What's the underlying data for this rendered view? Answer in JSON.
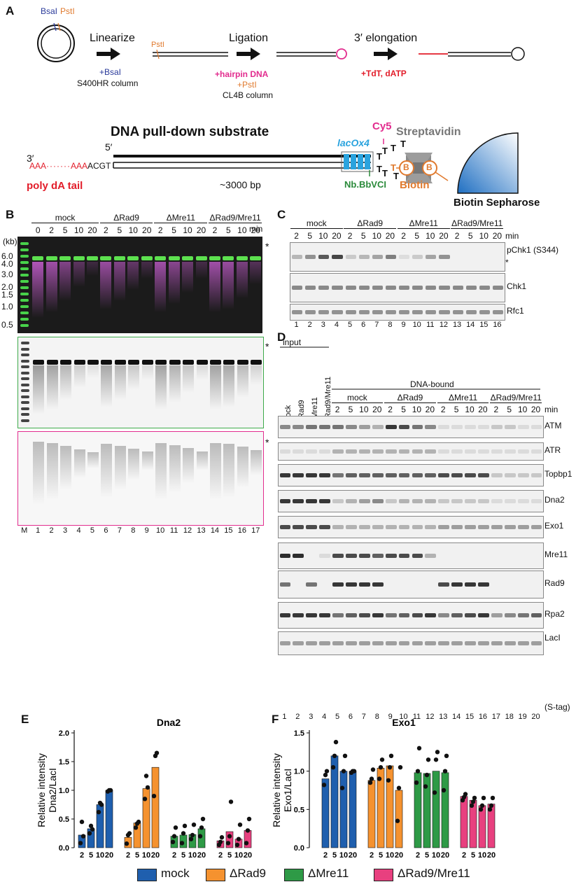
{
  "panelA": {
    "label": "A",
    "plasmid_site1": "BsaI",
    "plasmid_site2": "PstI",
    "step1": "Linearize",
    "step1_reagent": "+BsaI",
    "step1_column": "S400HR column",
    "pstI_label": "PstI",
    "step2": "Ligation",
    "step2_reagent1": "+hairpin DNA",
    "step2_reagent2": "+PstI",
    "step2_column": "CL4B column",
    "step3": "3′ elongation",
    "step3_reagent": "+TdT, dATP",
    "substrate_title": "DNA pull-down substrate",
    "three_prime": "3′",
    "five_prime": "5′",
    "tail_seq_a": "AAA",
    "tail_seq_b": "AAA",
    "tail_seq_c": "ACGT",
    "poly_da": "poly dA tail",
    "length": "~3000 bp",
    "laco": "lacOx4",
    "nb": "Nb.BbVCI",
    "cy5": "Cy5",
    "streptavidin": "Streptavidin",
    "biotin": "Biotin",
    "biotin_b": "B",
    "sepharose": "Biotin Sepharose",
    "t": "T"
  },
  "panelB": {
    "label": "B",
    "kb": "(kb)",
    "groups": [
      "mock",
      "ΔRad9",
      "ΔMre11",
      "ΔRad9/Mre11"
    ],
    "times": [
      "0",
      "2",
      "5",
      "10",
      "20",
      "2",
      "5",
      "10",
      "20",
      "2",
      "5",
      "10",
      "20",
      "2",
      "5",
      "10",
      "20"
    ],
    "min": "min",
    "ladder": [
      "6.0",
      "4.0",
      "3.0",
      "2.0",
      "1.5",
      "1.0",
      "0.5"
    ],
    "star": "*",
    "lanes": [
      "M",
      "1",
      "2",
      "3",
      "4",
      "5",
      "6",
      "7",
      "8",
      "9",
      "10",
      "11",
      "12",
      "13",
      "14",
      "15",
      "16",
      "17"
    ]
  },
  "panelC": {
    "label": "C",
    "groups": [
      "mock",
      "ΔRad9",
      "ΔMre11",
      "ΔRad9/Mre11"
    ],
    "times": [
      "2",
      "5",
      "10",
      "20",
      "2",
      "5",
      "10",
      "20",
      "2",
      "5",
      "10",
      "20",
      "2",
      "5",
      "10",
      "20"
    ],
    "min": "min",
    "blots": [
      "pChk1 (S344)",
      "Chk1",
      "Rfc1"
    ],
    "star": "*",
    "lanes": [
      "1",
      "2",
      "3",
      "4",
      "5",
      "6",
      "7",
      "8",
      "9",
      "10",
      "11",
      "12",
      "13",
      "14",
      "15",
      "16"
    ]
  },
  "panelD": {
    "label": "D",
    "input": "input",
    "input_lanes": [
      "mock",
      "ΔRad9",
      "ΔMre11",
      "ΔRad9/Mre11"
    ],
    "dna_bound": "DNA-bound",
    "groups": [
      "mock",
      "ΔRad9",
      "ΔMre11",
      "ΔRad9/Mre11"
    ],
    "times": [
      "2",
      "5",
      "10",
      "20",
      "2",
      "5",
      "10",
      "20",
      "2",
      "5",
      "10",
      "20",
      "2",
      "5",
      "10",
      "20"
    ],
    "min": "min",
    "blots": [
      "ATM",
      "ATR",
      "Topbp1",
      "Dna2",
      "Exo1",
      "Mre11",
      "Rad9",
      "Rpa2",
      "LacI"
    ],
    "laci_sub": "(S-tag)",
    "lanes": [
      "1",
      "2",
      "3",
      "4",
      "5",
      "6",
      "7",
      "8",
      "9",
      "10",
      "11",
      "12",
      "13",
      "14",
      "15",
      "16",
      "17",
      "18",
      "19",
      "20"
    ]
  },
  "legend": {
    "items": [
      {
        "label": "mock",
        "color": "#1f5fae"
      },
      {
        "label": "ΔRad9",
        "color": "#f5922f"
      },
      {
        "label": "ΔMre11",
        "color": "#2e9a46"
      },
      {
        "label": "ΔRad9/Mre11",
        "color": "#e8407f"
      }
    ]
  },
  "chart_data": [
    {
      "type": "bar",
      "panel": "E",
      "title": "Dna2",
      "ylabel": "Relative intensity\nDna2/LacI",
      "xlabel": "min",
      "ylim": [
        0,
        2.0
      ],
      "yticks": [
        "0.0",
        "0.5",
        "1.0",
        "1.5",
        "2.0"
      ],
      "categories": [
        "2",
        "5",
        "10",
        "20"
      ],
      "series": [
        {
          "name": "mock",
          "values": [
            0.22,
            0.33,
            0.75,
            1.0
          ],
          "points": [
            [
              0.08,
              0.45,
              0.2
            ],
            [
              0.25,
              0.38,
              0.32
            ],
            [
              0.62,
              0.78,
              0.75
            ],
            [
              0.98,
              1.0,
              1.0
            ]
          ]
        },
        {
          "name": "ΔRad9",
          "values": [
            0.18,
            0.43,
            1.03,
            1.4
          ],
          "points": [
            [
              0.07,
              0.22,
              0.25
            ],
            [
              0.35,
              0.42,
              0.45
            ],
            [
              0.85,
              1.25,
              1.05
            ],
            [
              0.9,
              1.6,
              1.65
            ]
          ]
        },
        {
          "name": "ΔMre11",
          "values": [
            0.2,
            0.22,
            0.23,
            0.33
          ],
          "points": [
            [
              0.1,
              0.2,
              0.35
            ],
            [
              0.08,
              0.25,
              0.38
            ],
            [
              0.15,
              0.22,
              0.4
            ],
            [
              0.2,
              0.35,
              0.5
            ]
          ]
        },
        {
          "name": "ΔRad9/Mre11",
          "values": [
            0.12,
            0.28,
            0.15,
            0.3
          ],
          "points": [
            [
              0.05,
              0.1,
              0.18
            ],
            [
              0.08,
              0.2,
              0.8
            ],
            [
              0.05,
              0.15,
              0.4
            ],
            [
              0.08,
              0.3,
              0.5
            ]
          ]
        }
      ]
    },
    {
      "type": "bar",
      "panel": "F",
      "title": "Exo1",
      "ylabel": "Relative intensity\nExo1/LacI",
      "xlabel": "min",
      "ylim": [
        0,
        1.5
      ],
      "yticks": [
        "0.0",
        "0.5",
        "1.0",
        "1.5"
      ],
      "categories": [
        "2",
        "5",
        "10",
        "20"
      ],
      "series": [
        {
          "name": "mock",
          "values": [
            0.9,
            1.2,
            1.0,
            1.0
          ],
          "points": [
            [
              0.82,
              0.95,
              1.0
            ],
            [
              1.05,
              1.2,
              1.38
            ],
            [
              0.78,
              1.0,
              1.2
            ],
            [
              0.98,
              1.0,
              1.0
            ]
          ]
        },
        {
          "name": "ΔRad9",
          "values": [
            0.88,
            1.04,
            1.07,
            0.75
          ],
          "points": [
            [
              0.85,
              0.9,
              1.02
            ],
            [
              0.9,
              1.05,
              1.15
            ],
            [
              0.88,
              1.05,
              1.2
            ],
            [
              0.35,
              0.78,
              1.05
            ]
          ]
        },
        {
          "name": "ΔMre11",
          "values": [
            0.98,
            0.97,
            1.0,
            0.98
          ],
          "points": [
            [
              0.85,
              1.0,
              1.3
            ],
            [
              0.8,
              0.95,
              1.15
            ],
            [
              0.72,
              1.15,
              1.25
            ],
            [
              0.75,
              1.0,
              1.2
            ]
          ]
        },
        {
          "name": "ΔRad9/Mre11",
          "values": [
            0.67,
            0.62,
            0.55,
            0.57
          ],
          "points": [
            [
              0.62,
              0.66,
              0.7
            ],
            [
              0.55,
              0.6,
              0.65
            ],
            [
              0.5,
              0.55,
              0.65
            ],
            [
              0.5,
              0.55,
              0.65
            ]
          ]
        }
      ]
    }
  ]
}
